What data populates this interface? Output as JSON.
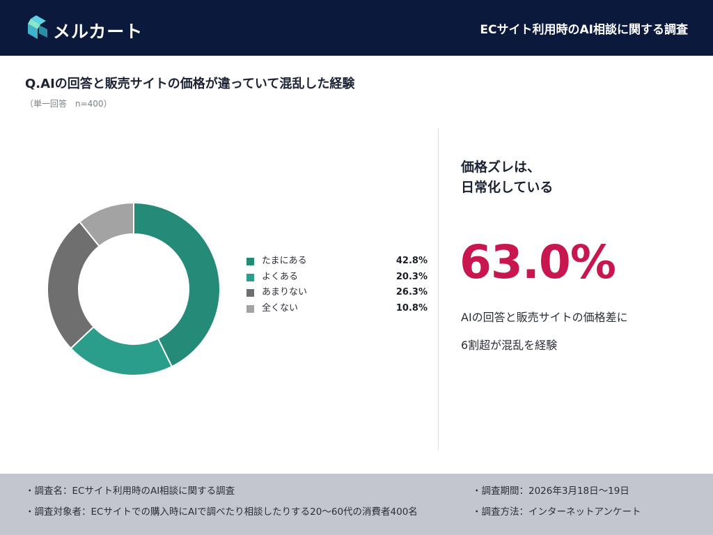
{
  "header": {
    "logo_text": "メルカート",
    "title": "ECサイト利用時のAI相談に関する調査"
  },
  "question": {
    "title": "Q.AIの回答と販売サイトの価格が違っていて混乱した経験",
    "subtitle": "（単一回答　n=400）"
  },
  "chart_data": {
    "type": "pie",
    "donut": true,
    "categories": [
      "たまにある",
      "よくある",
      "あまりない",
      "全くない"
    ],
    "values": [
      42.8,
      20.3,
      26.3,
      10.8
    ],
    "value_labels": [
      "42.8%",
      "20.3%",
      "26.3%",
      "10.8%"
    ],
    "colors": [
      "#238b78",
      "#2a9e8a",
      "#6f6f6f",
      "#a3a3a3"
    ],
    "legend_position": "right"
  },
  "highlight": {
    "heading_line1": "価格ズレは、",
    "heading_line2": "日常化している",
    "percentage": "63.0%",
    "description_line1": "AIの回答と販売サイトの価格差に",
    "description_line2": "6割超が混乱を経験",
    "accent_color": "#c8174f"
  },
  "footer": {
    "survey_name": "・調査名：ECサイト利用時のAI相談に関する調査",
    "survey_target": "・調査対象者：ECサイトでの購入時にAIで調べたり相談したりする20〜60代の消費者400名",
    "survey_period": "・調査期間：2026年3月18日〜19日",
    "survey_method": "・調査方法：インターネットアンケート"
  }
}
